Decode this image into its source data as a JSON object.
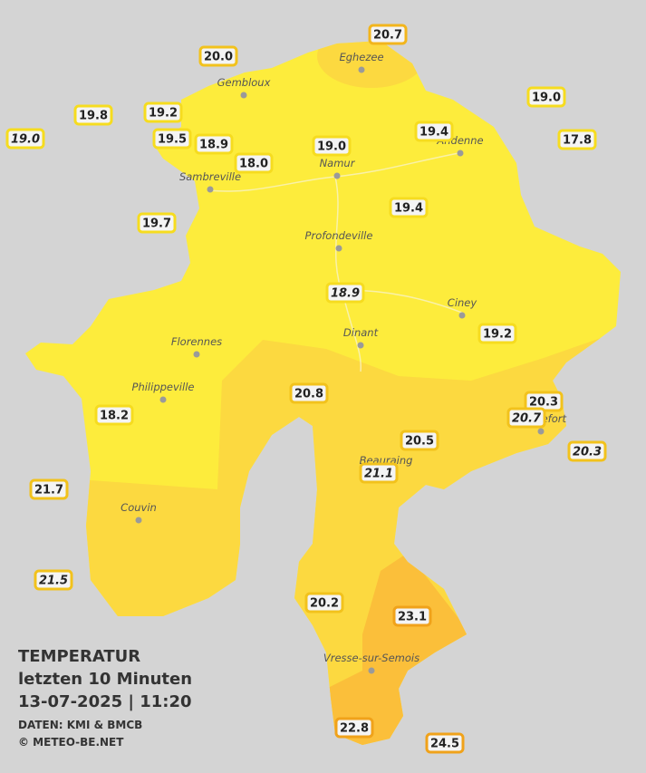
{
  "title": {
    "lines": [
      "TEMPERATUR",
      "letzten 10 Minuten",
      "13-07-2025  |  11:20"
    ]
  },
  "credits": [
    "DATEN: KMI & BMCB",
    "© METEO-BE.NET"
  ],
  "cities": [
    "Eghezee",
    "Gembloux",
    "Andenne",
    "Namur",
    "Sambreville",
    "Profondeville",
    "Ciney",
    "Dinant",
    "Florennes",
    "Philippeville",
    "Rochefort",
    "Beauraing",
    "Couvin",
    "Vresse-sur-Semois"
  ],
  "stations": [
    {
      "label": "20.7",
      "italic": false,
      "color": "#f2b51c"
    },
    {
      "label": "20.0",
      "italic": false,
      "color": "#f2c21c"
    },
    {
      "label": "19.0",
      "italic": false,
      "color": "#f6dc1f"
    },
    {
      "label": "19.8",
      "italic": false,
      "color": "#f6dc1f"
    },
    {
      "label": "19.2",
      "italic": false,
      "color": "#f6dc1f"
    },
    {
      "label": "19.0",
      "italic": true,
      "color": "#f6dc1f"
    },
    {
      "label": "19.5",
      "italic": false,
      "color": "#f6dc1f"
    },
    {
      "label": "18.9",
      "italic": false,
      "color": "#f6dc1f"
    },
    {
      "label": "19.4",
      "italic": false,
      "color": "#f6dc1f"
    },
    {
      "label": "17.8",
      "italic": false,
      "color": "#f6dc1f"
    },
    {
      "label": "19.0",
      "italic": false,
      "color": "#f6dc1f"
    },
    {
      "label": "18.0",
      "italic": false,
      "color": "#f6dc1f"
    },
    {
      "label": "19.7",
      "italic": false,
      "color": "#f6dc1f"
    },
    {
      "label": "19.4",
      "italic": false,
      "color": "#f6dc1f"
    },
    {
      "label": "18.9",
      "italic": true,
      "color": "#f6dc1f"
    },
    {
      "label": "19.2",
      "italic": false,
      "color": "#f6dc1f"
    },
    {
      "label": "20.8",
      "italic": false,
      "color": "#f2c21c"
    },
    {
      "label": "20.3",
      "italic": false,
      "color": "#f2c21c"
    },
    {
      "label": "20.7",
      "italic": true,
      "color": "#f2c21c"
    },
    {
      "label": "18.2",
      "italic": false,
      "color": "#f6dc1f"
    },
    {
      "label": "20.5",
      "italic": false,
      "color": "#f2c21c"
    },
    {
      "label": "20.3",
      "italic": true,
      "color": "#f2c21c"
    },
    {
      "label": "21.1",
      "italic": true,
      "color": "#f2c21c"
    },
    {
      "label": "21.7",
      "italic": false,
      "color": "#f2c21c"
    },
    {
      "label": "21.5",
      "italic": true,
      "color": "#f2c21c"
    },
    {
      "label": "20.2",
      "italic": false,
      "color": "#f2c21c"
    },
    {
      "label": "23.1",
      "italic": false,
      "color": "#f0a21a"
    },
    {
      "label": "22.8",
      "italic": false,
      "color": "#f0a21a"
    },
    {
      "label": "24.5",
      "italic": false,
      "color": "#f0a21a"
    }
  ]
}
